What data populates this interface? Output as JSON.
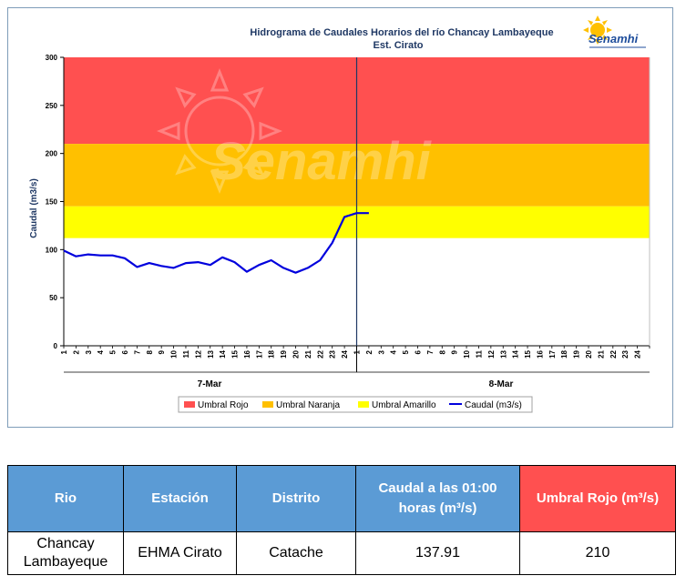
{
  "chart_data": {
    "type": "line",
    "title": "Hidrograma de Caudales Horarios del río Chancay Lambayeque",
    "subtitle": "Est. Cirato",
    "logo_text": "Senamhi",
    "watermark_text": "Senamhi",
    "ylabel": "Caudal  (m3/s)",
    "ylim": [
      0,
      300
    ],
    "yticks": [
      0,
      50,
      100,
      150,
      200,
      250,
      300
    ],
    "day_labels": [
      "7-Mar",
      "8-Mar"
    ],
    "hour_ticks": [
      "1",
      "2",
      "3",
      "4",
      "5",
      "6",
      "7",
      "8",
      "9",
      "10",
      "11",
      "12",
      "13",
      "14",
      "15",
      "16",
      "17",
      "18",
      "19",
      "20",
      "21",
      "22",
      "23",
      "24"
    ],
    "thresholds": [
      {
        "name": "Umbral Rojo",
        "from": 210,
        "to": 300,
        "color": "#ff5050"
      },
      {
        "name": "Umbral Naranja",
        "from": 145,
        "to": 210,
        "color": "#ffc000"
      },
      {
        "name": "Umbral Amarillo",
        "from": 112,
        "to": 145,
        "color": "#ffff00"
      }
    ],
    "series": [
      {
        "name": "Caudal (m3/s)",
        "color": "#0000dd",
        "x": [
          1,
          2,
          3,
          4,
          5,
          6,
          7,
          8,
          9,
          10,
          11,
          12,
          13,
          14,
          15,
          16,
          17,
          18,
          19,
          20,
          21,
          22,
          23,
          24,
          25,
          26
        ],
        "values": [
          99,
          93,
          95,
          94,
          94,
          91,
          82,
          86,
          83,
          81,
          86,
          87,
          84,
          92,
          87,
          77,
          84,
          89,
          81,
          76,
          81,
          89,
          107,
          134,
          138,
          138
        ]
      }
    ],
    "legend": [
      "Umbral Rojo",
      "Umbral Naranja",
      "Umbral Amarillo",
      "Caudal (m3/s)"
    ],
    "legend_position": "bottom",
    "grid": false
  },
  "table": {
    "headers": [
      "Rio",
      "Estación",
      "Distrito",
      "Caudal a las 01:00 horas (m³/s)",
      "Umbral Rojo (m³/s)"
    ],
    "header_colors": [
      "#5b9bd5",
      "#5b9bd5",
      "#5b9bd5",
      "#5b9bd5",
      "#ff5050"
    ],
    "rows": [
      [
        "Chancay Lambayeque",
        "EHMA Cirato",
        "Catache",
        "137.91",
        "210"
      ]
    ]
  }
}
